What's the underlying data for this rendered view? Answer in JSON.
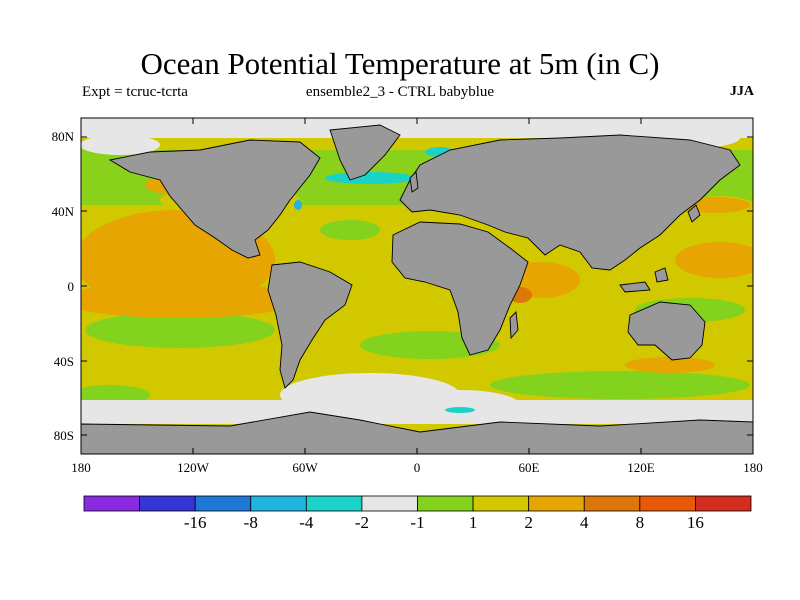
{
  "title": "Ocean Potential Temperature at 5m (in C)",
  "expt_label": "Expt = tcruc-tcrta",
  "ensemble_label": "ensemble2_3 - CTRL babyblue",
  "season_label": "JJA",
  "map": {
    "lat_ticks": [
      "80N",
      "40N",
      "0",
      "40S",
      "80S"
    ],
    "lon_ticks": [
      "180",
      "120W",
      "60W",
      "0",
      "60E",
      "120E",
      "180"
    ]
  },
  "colorbar": {
    "colors": [
      "#8a2be2",
      "#3535d6",
      "#1e78d8",
      "#21b4e0",
      "#1ad2c8",
      "#e6e6e6",
      "#82d21e",
      "#d2c800",
      "#e6a500",
      "#dc780a",
      "#e65a0a",
      "#d22d1e"
    ],
    "labels": [
      "-16",
      "-8",
      "-4",
      "-2",
      "-1",
      "1",
      "2",
      "4",
      "8",
      "16"
    ]
  },
  "legend_colors": {
    "land": "#999999",
    "ocean_base": "#d2c800"
  }
}
